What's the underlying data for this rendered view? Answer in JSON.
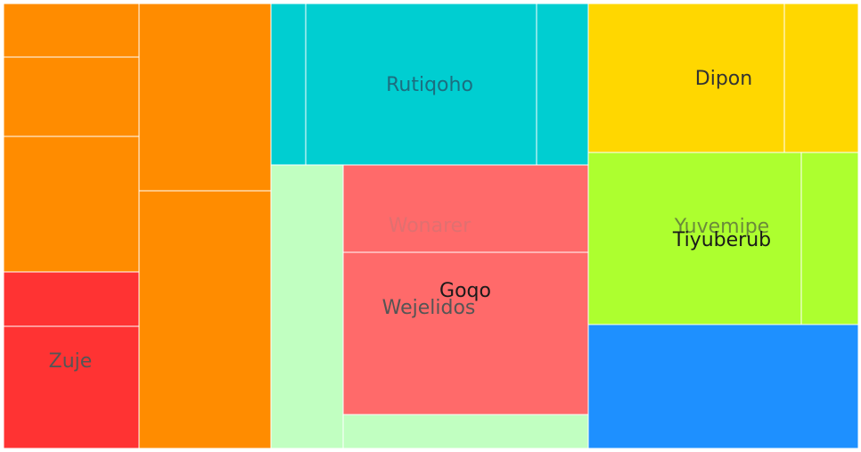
{
  "chart_data": {
    "type": "treemap",
    "title": "",
    "colors": {
      "orange": "#ff8c00",
      "red": "#ff3333",
      "cyan": "#00ced1",
      "mint": "#c1ffc1",
      "salmon": "#ff6a6a",
      "gold": "#ffd700",
      "lime": "#adff2f",
      "blue": "#1e90ff"
    },
    "labels": [
      {
        "text": "Rutiqoho",
        "color": "#1c6e80"
      },
      {
        "text": "Dipon",
        "color": "#333333"
      },
      {
        "text": "Wonarer",
        "color": "#e07070"
      },
      {
        "text": "Yuvemipe",
        "color": "#6a8a3a"
      },
      {
        "text": "Tiyuberub",
        "color": "#1a1a1a"
      },
      {
        "text": "Goqo",
        "color": "#1a1a1a"
      },
      {
        "text": "Wejelidos",
        "color": "#555555"
      },
      {
        "text": "Zuje",
        "color": "#555555"
      }
    ]
  }
}
